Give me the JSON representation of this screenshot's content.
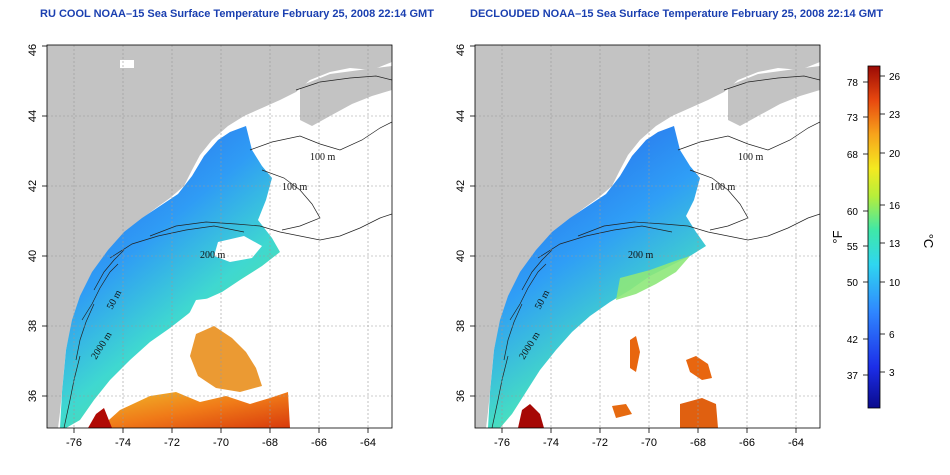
{
  "titles": {
    "left": "RU COOL NOAA–15 Sea Surface Temperature February 25, 2008 22:14 GMT",
    "right": "DECLOUDED NOAA–15 Sea Surface Temperature February 25, 2008 22:14 GMT"
  },
  "x_ticks": [
    "-76",
    "-74",
    "-72",
    "-70",
    "-68",
    "-66",
    "-64"
  ],
  "y_ticks": [
    "36",
    "38",
    "40",
    "42",
    "44",
    "46"
  ],
  "contour_labels": {
    "left": [
      "100 m",
      "100 m",
      "200 m",
      "50 m",
      "2000 m"
    ],
    "right": [
      "100 m",
      "100 m",
      "200 m",
      "50 m",
      "2000 m"
    ]
  },
  "colorbar": {
    "fahrenheit_label": "°F",
    "celsius_label": "°C",
    "fahrenheit_ticks": [
      "78",
      "73",
      "68",
      "60",
      "55",
      "50",
      "42",
      "37"
    ],
    "celsius_ticks": [
      "26",
      "23",
      "20",
      "16",
      "13",
      "10",
      "6",
      "3"
    ]
  },
  "colors": {
    "title": "#1a3fb0",
    "land": "#c3c3c3",
    "cloud": "#ffffff",
    "cold": "#1a3ad8",
    "warm": "#e0660f"
  }
}
